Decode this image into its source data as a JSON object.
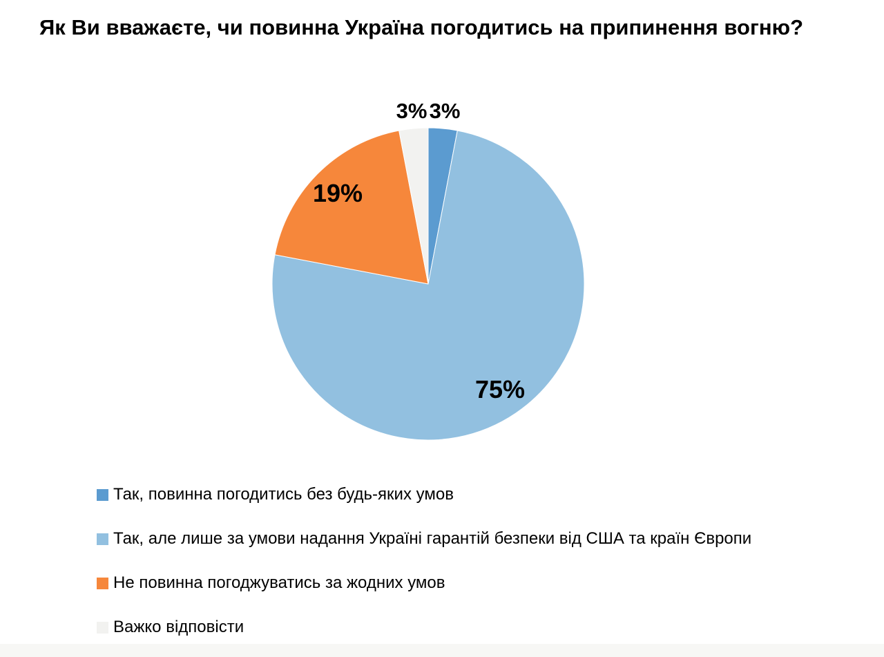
{
  "title": "Як Ви вважаєте, чи повинна Україна погодитись на припинення вогню?",
  "chart_data": {
    "type": "pie",
    "title": "Як Ви вважаєте, чи повинна Україна погодитись на припинення вогню?",
    "unit": "%",
    "start_angle_deg": 0,
    "direction": "clockwise",
    "legend_position": "bottom-left",
    "slices": [
      {
        "label": "Так, повинна погодитись без будь-яких умов",
        "value": 3,
        "data_label": "3%",
        "color": "#5B9BD0",
        "label_placement": "outside"
      },
      {
        "label": "Так, але лише за умови надання Україні гарантій безпеки від США та країн Європи",
        "value": 75,
        "data_label": "75%",
        "color": "#92C0E0",
        "label_placement": "inside"
      },
      {
        "label": "Не повинна погоджуватись за жодних умов",
        "value": 19,
        "data_label": "19%",
        "color": "#F6873B",
        "label_placement": "inside"
      },
      {
        "label": "Важко відповісти",
        "value": 3,
        "data_label": "3%",
        "color": "#F2F2F0",
        "label_placement": "outside"
      }
    ]
  },
  "colors": {
    "background": "#FFFFFF",
    "text": "#000000",
    "slice_border": "#FFFFFF",
    "footer_strip": "#F7F7F5"
  }
}
